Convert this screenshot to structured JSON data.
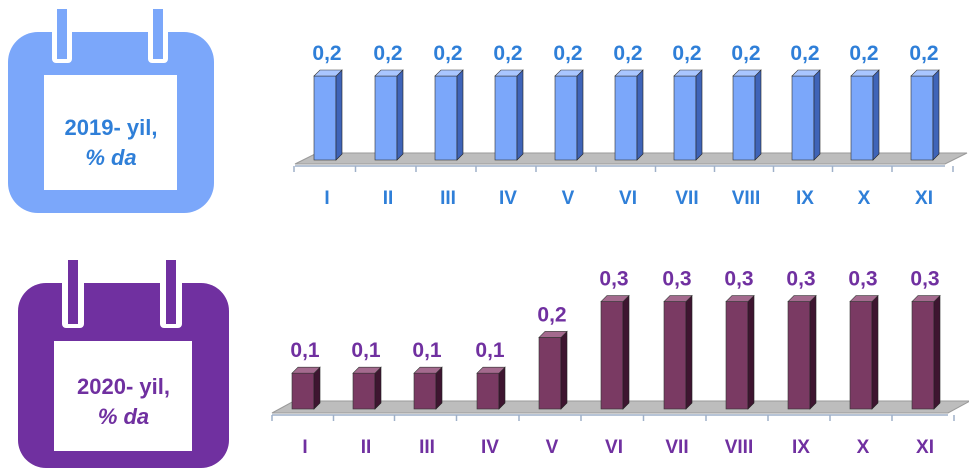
{
  "calendars": [
    {
      "line1": "2019- yil,",
      "line2": "% da",
      "color": "#7BA7FA",
      "text_color": "#2F7FD8"
    },
    {
      "line1": "2020- yil,",
      "line2": "% da",
      "color": "#7030A0",
      "text_color": "#7030A0"
    }
  ],
  "chart_data": [
    {
      "type": "bar",
      "categories": [
        "I",
        "II",
        "III",
        "IV",
        "V",
        "VI",
        "VII",
        "VIII",
        "IX",
        "X",
        "XI"
      ],
      "values": [
        0.2,
        0.2,
        0.2,
        0.2,
        0.2,
        0.2,
        0.2,
        0.2,
        0.2,
        0.2,
        0.2
      ],
      "value_labels": [
        "0,2",
        "0,2",
        "0,2",
        "0,2",
        "0,2",
        "0,2",
        "0,2",
        "0,2",
        "0,2",
        "0,2",
        "0,2"
      ],
      "title": "",
      "xlabel": "",
      "ylabel": "",
      "colors": {
        "bar": "#7BA7FA",
        "bar_side": "#3F64B8",
        "bar_top": "#A9C6FF",
        "label": "#2F7FD8"
      }
    },
    {
      "type": "bar",
      "categories": [
        "I",
        "II",
        "III",
        "IV",
        "V",
        "VI",
        "VII",
        "VIII",
        "IX",
        "X",
        "XI"
      ],
      "values": [
        0.1,
        0.1,
        0.1,
        0.1,
        0.2,
        0.3,
        0.3,
        0.3,
        0.3,
        0.3,
        0.3
      ],
      "value_labels": [
        "0,1",
        "0,1",
        "0,1",
        "0,1",
        "0,2",
        "0,3",
        "0,3",
        "0,3",
        "0,3",
        "0,3",
        "0,3"
      ],
      "title": "",
      "xlabel": "",
      "ylabel": "",
      "colors": {
        "bar": "#7A3A63",
        "bar_side": "#3E1530",
        "bar_top": "#A46A8E",
        "label": "#7030A0"
      }
    }
  ]
}
